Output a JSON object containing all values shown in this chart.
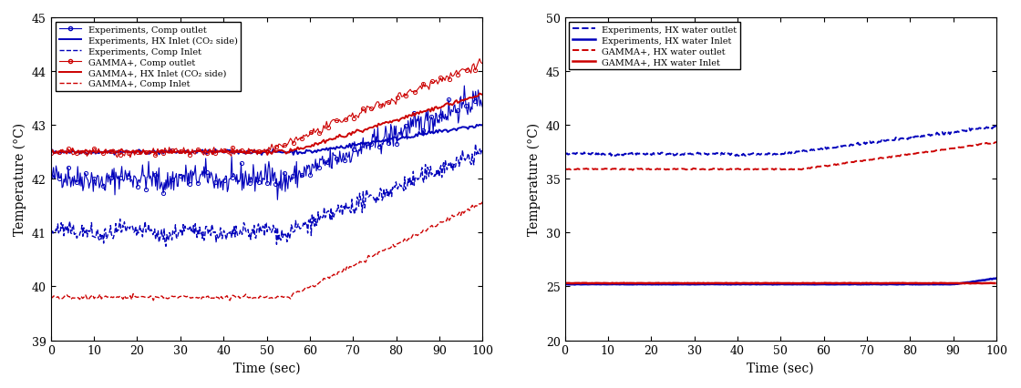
{
  "left_plot": {
    "xlim": [
      0,
      100
    ],
    "ylim": [
      39,
      45
    ],
    "xlabel": "Time (sec)",
    "ylabel": "Temperature (°C)",
    "yticks": [
      39,
      40,
      41,
      42,
      43,
      44,
      45
    ],
    "xticks": [
      0,
      10,
      20,
      30,
      40,
      50,
      60,
      70,
      80,
      90,
      100
    ],
    "series": [
      {
        "label": "Experiments, Comp outlet",
        "color": "#0000bb",
        "linestyle": "-",
        "marker": "o",
        "markersize": 3,
        "linewidth": 0.8,
        "base_start": 42.0,
        "base_end": 43.5,
        "noise_amp": 0.12,
        "transition_start": 55,
        "transition_end": 100,
        "flat_noise": true
      },
      {
        "label": "Experiments, HX Inlet (CO₂ side)",
        "color": "#0000bb",
        "linestyle": "-",
        "marker": null,
        "markersize": 0,
        "linewidth": 1.4,
        "base_start": 42.5,
        "base_end": 43.0,
        "noise_amp": 0.02,
        "transition_start": 60,
        "transition_end": 100,
        "flat_noise": false
      },
      {
        "label": "Experiments, Comp Inlet",
        "color": "#0000bb",
        "linestyle": "--",
        "marker": null,
        "markersize": 0,
        "linewidth": 1.0,
        "base_start": 41.0,
        "base_end": 42.5,
        "noise_amp": 0.08,
        "transition_start": 55,
        "transition_end": 100,
        "flat_noise": true
      },
      {
        "label": "GAMMA+, Comp outlet",
        "color": "#cc0000",
        "linestyle": "-",
        "marker": "o",
        "markersize": 3,
        "linewidth": 0.8,
        "base_start": 42.5,
        "base_end": 44.17,
        "noise_amp": 0.04,
        "transition_start": 50,
        "transition_end": 100,
        "flat_noise": false
      },
      {
        "label": "GAMMA+, HX Inlet (CO₂ side)",
        "color": "#cc0000",
        "linestyle": "-",
        "marker": null,
        "markersize": 0,
        "linewidth": 1.4,
        "base_start": 42.5,
        "base_end": 43.57,
        "noise_amp": 0.02,
        "transition_start": 55,
        "transition_end": 100,
        "flat_noise": false
      },
      {
        "label": "GAMMA+, Comp Inlet",
        "color": "#cc0000",
        "linestyle": "--",
        "marker": null,
        "markersize": 0,
        "linewidth": 1.0,
        "base_start": 39.8,
        "base_end": 41.56,
        "noise_amp": 0.02,
        "transition_start": 55,
        "transition_end": 100,
        "flat_noise": false
      }
    ]
  },
  "right_plot": {
    "xlim": [
      0,
      100
    ],
    "ylim": [
      20,
      50
    ],
    "xlabel": "Time (sec)",
    "ylabel": "Temperature (°C)",
    "yticks": [
      20,
      25,
      30,
      35,
      40,
      45,
      50
    ],
    "xticks": [
      0,
      10,
      20,
      30,
      40,
      50,
      60,
      70,
      80,
      90,
      100
    ],
    "series": [
      {
        "label": "Experiments, HX water outlet",
        "color": "#0000bb",
        "linestyle": "--",
        "marker": null,
        "linewidth": 1.4,
        "base_start": 37.3,
        "base_end": 39.85,
        "noise_amp": 0.06,
        "transition_start": 50,
        "transition_end": 100,
        "flat_noise": true
      },
      {
        "label": "Experiments, HX water Inlet",
        "color": "#0000bb",
        "linestyle": "-",
        "marker": null,
        "linewidth": 1.8,
        "base_start": 25.2,
        "base_end": 25.75,
        "noise_amp": 0.01,
        "transition_start": 90,
        "transition_end": 100,
        "flat_noise": false
      },
      {
        "label": "GAMMA+, HX water outlet",
        "color": "#cc0000",
        "linestyle": "--",
        "marker": null,
        "linewidth": 1.4,
        "base_start": 35.9,
        "base_end": 38.4,
        "noise_amp": 0.03,
        "transition_start": 55,
        "transition_end": 100,
        "flat_noise": false
      },
      {
        "label": "GAMMA+, HX water Inlet",
        "color": "#cc0000",
        "linestyle": "-",
        "marker": null,
        "linewidth": 1.8,
        "base_start": 25.3,
        "base_end": 25.3,
        "noise_amp": 0.01,
        "transition_start": 100,
        "transition_end": 100,
        "flat_noise": false
      }
    ]
  },
  "background_color": "#ffffff"
}
